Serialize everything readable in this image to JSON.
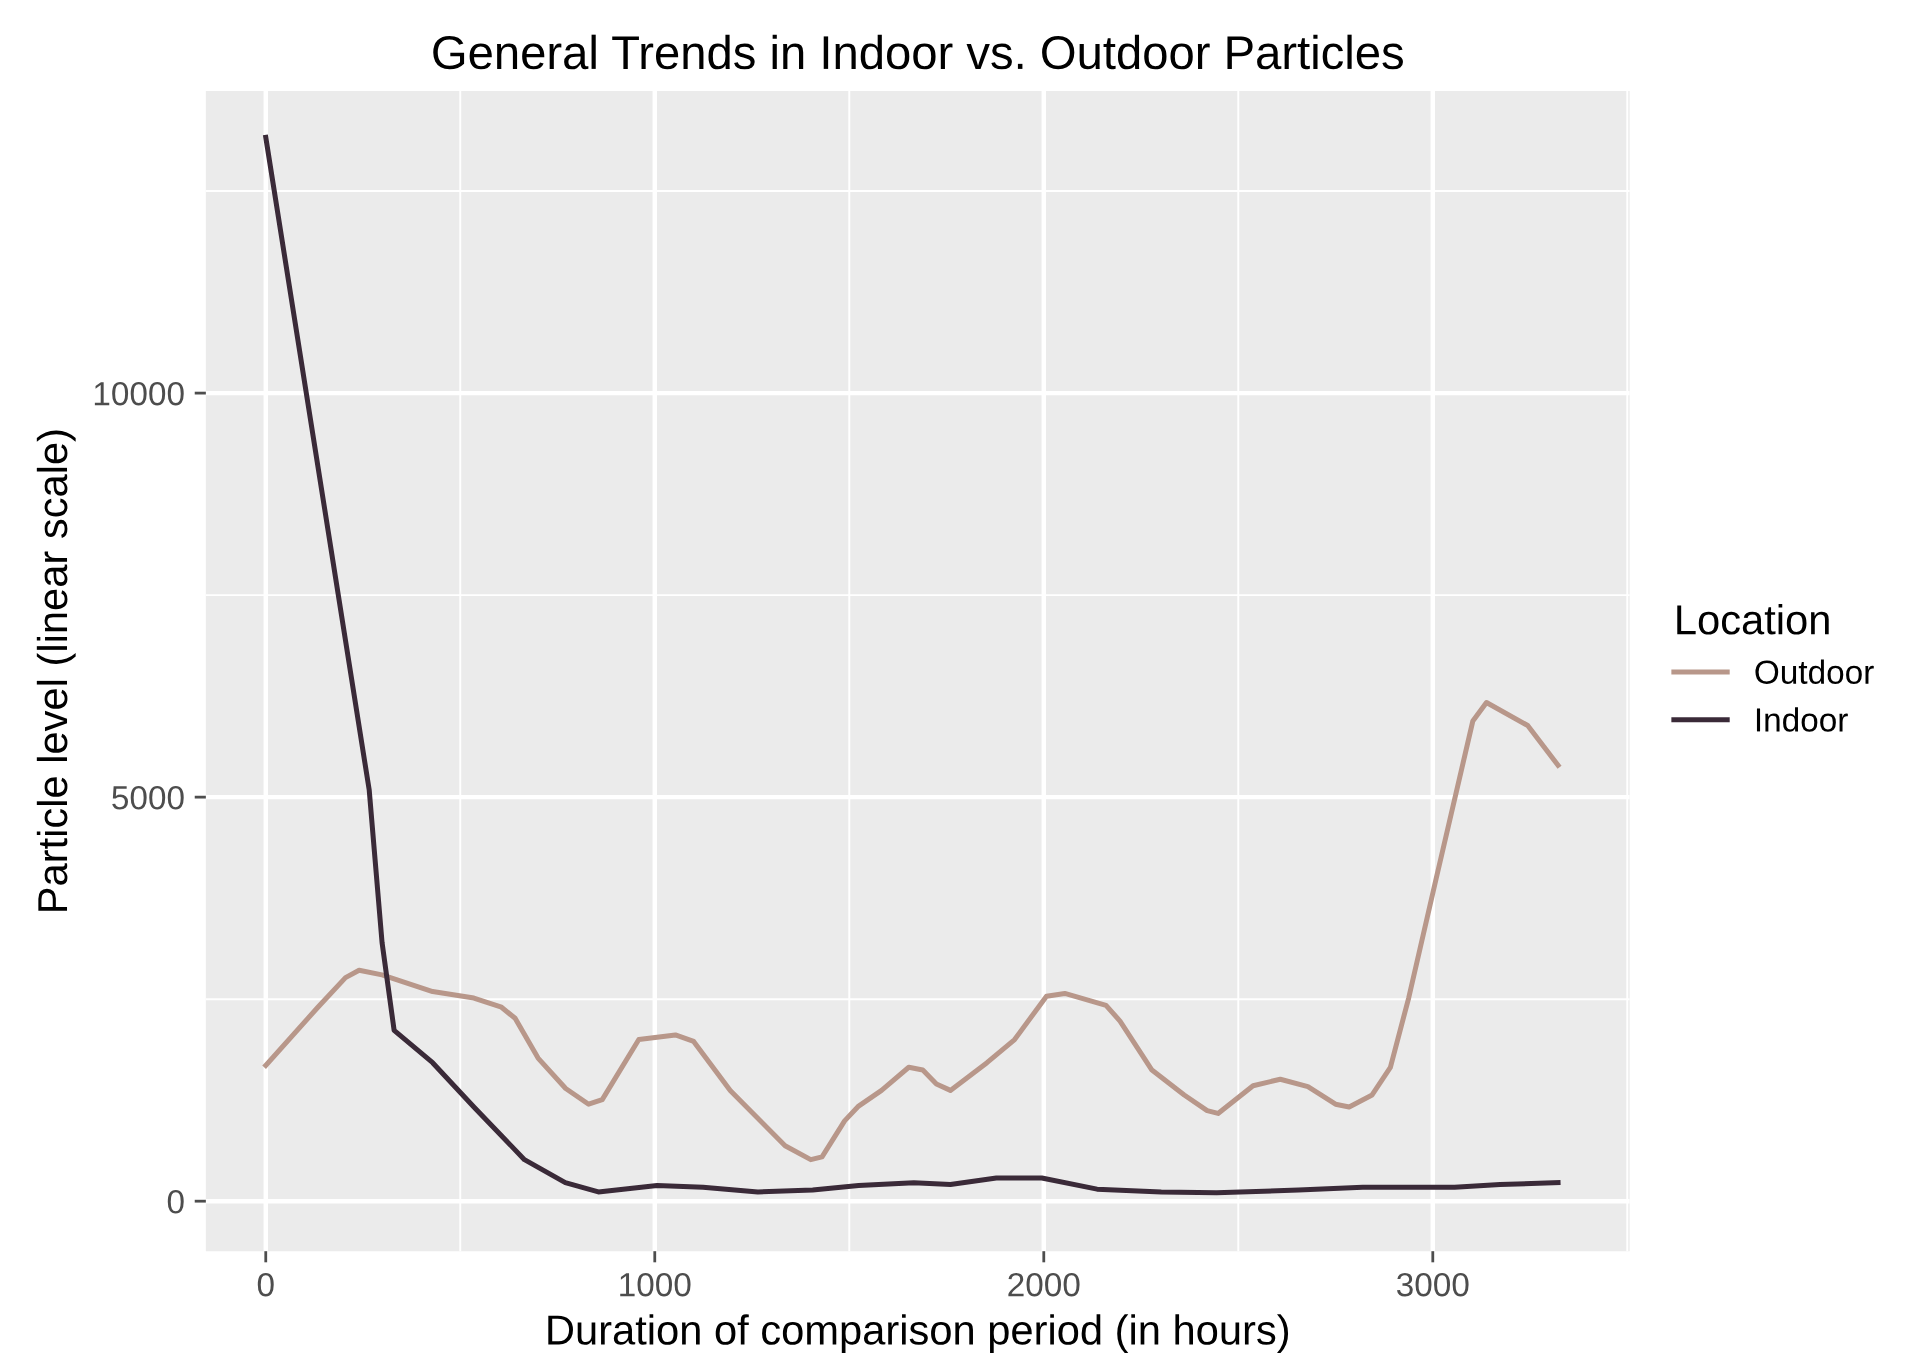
{
  "chart_data": {
    "type": "line",
    "title": "General Trends in Indoor vs. Outdoor Particles",
    "xlabel": "Duration of comparison period (in hours)",
    "ylabel": "Particle level (linear scale)",
    "legend_title": "Location",
    "legend": "right",
    "grid": true,
    "xlim": [
      -154,
      3506
    ],
    "ylim": [
      -619,
      13737
    ],
    "xticks": [
      0,
      {
        "value": 500,
        "label": null
      },
      1000,
      {
        "value": 1500,
        "label": null
      },
      2000,
      {
        "value": 2500,
        "label": null
      },
      3000,
      {
        "value": 3500,
        "label": null
      }
    ],
    "yticks": [
      0,
      {
        "value": 2500,
        "label": null
      },
      5000,
      {
        "value": 7500,
        "label": null
      },
      10000,
      {
        "value": 12500,
        "label": null
      }
    ],
    "series": [
      {
        "name": "Outdoor",
        "color": "#b8978a",
        "x": [
          0,
          134,
          205,
          240,
          299,
          429,
          535,
          606,
          641,
          700,
          771,
          830,
          865,
          959,
          1053,
          1100,
          1194,
          1335,
          1401,
          1430,
          1488,
          1524,
          1583,
          1653,
          1689,
          1724,
          1760,
          1854,
          1925,
          2007,
          2054,
          2160,
          2196,
          2278,
          2361,
          2420,
          2448,
          2538,
          2608,
          2679,
          2750,
          2785,
          2844,
          2891,
          2938,
          3009,
          3103,
          3138,
          3244,
          3322
        ],
        "values": [
          1680,
          2400,
          2766,
          2857,
          2800,
          2594,
          2514,
          2400,
          2263,
          1771,
          1394,
          1200,
          1257,
          2000,
          2057,
          1977,
          1371,
          686,
          514,
          549,
          994,
          1177,
          1371,
          1657,
          1623,
          1451,
          1371,
          1714,
          2000,
          2537,
          2571,
          2423,
          2229,
          1623,
          1314,
          1120,
          1086,
          1429,
          1509,
          1417,
          1200,
          1166,
          1314,
          1657,
          2514,
          4000,
          5943,
          6171,
          5886,
          5394
        ]
      },
      {
        "name": "Indoor",
        "color": "#3a2a38",
        "x": [
          0,
          266,
          299,
          330,
          429,
          535,
          665,
          770,
          855,
          1006,
          1124,
          1265,
          1406,
          1524,
          1666,
          1760,
          1878,
          1995,
          2137,
          2302,
          2444,
          2655,
          2820,
          3056,
          3173,
          3322
        ],
        "values": [
          13166,
          5086,
          3200,
          2114,
          1714,
          1166,
          514,
          229,
          114,
          194,
          171,
          114,
          137,
          194,
          229,
          206,
          286,
          286,
          149,
          114,
          103,
          137,
          171,
          171,
          206,
          229
        ]
      }
    ]
  }
}
